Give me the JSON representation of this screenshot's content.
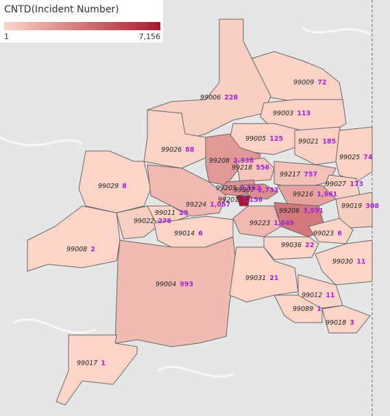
{
  "legend": {
    "title": "CNTD(Incident Number)",
    "min": {
      "value": 1,
      "label": "1"
    },
    "max": {
      "value": 7156,
      "label": "7,156"
    }
  },
  "regions": [
    {
      "zip": "99009",
      "count": 72
    },
    {
      "zip": "99006",
      "count": 228
    },
    {
      "zip": "99003",
      "count": 113
    },
    {
      "zip": "99005",
      "count": 125
    },
    {
      "zip": "99021",
      "count": 185
    },
    {
      "zip": "99026",
      "count": 88
    },
    {
      "zip": "99208",
      "count": 2338,
      "count_label": "2,338"
    },
    {
      "zip": "99218",
      "count": 556
    },
    {
      "zip": "99025",
      "count": 74
    },
    {
      "zip": "99217",
      "count": 757
    },
    {
      "zip": "99029",
      "count": 8
    },
    {
      "zip": "99205",
      "count": 2552,
      "count_label": "2,552"
    },
    {
      "zip": "99207",
      "count": 2733,
      "count_label": "2,733"
    },
    {
      "zip": "99027",
      "count": 173
    },
    {
      "zip": "99216",
      "count": 1961,
      "count_label": "1,961"
    },
    {
      "zip": "99201",
      "count": 7156,
      "count_label": "7,156"
    },
    {
      "zip": "99224",
      "count": 1057,
      "count_label": "1,057"
    },
    {
      "zip": "99019",
      "count": 308
    },
    {
      "zip": "99011",
      "count": 29
    },
    {
      "zip": "99206",
      "count": 3591,
      "count_label": "3,591"
    },
    {
      "zip": "99022",
      "count": 278
    },
    {
      "zip": "99223",
      "count": 1049,
      "count_label": "1,049"
    },
    {
      "zip": "99014",
      "count": 6
    },
    {
      "zip": "99023",
      "count": 6
    },
    {
      "zip": "99008",
      "count": 2
    },
    {
      "zip": "99036",
      "count": 22
    },
    {
      "zip": "99030",
      "count": 11
    },
    {
      "zip": "99004",
      "count": 993
    },
    {
      "zip": "99031",
      "count": 21
    },
    {
      "zip": "99012",
      "count": 11
    },
    {
      "zip": "99089",
      "count": 1
    },
    {
      "zip": "99018",
      "count": 3
    },
    {
      "zip": "99017",
      "count": 1
    }
  ]
}
